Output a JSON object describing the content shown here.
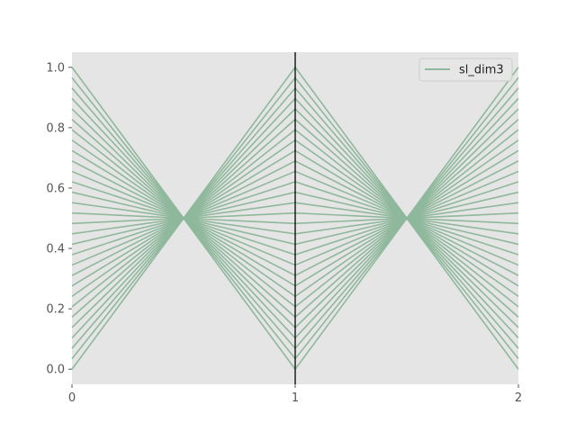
{
  "chart_data": {
    "type": "line",
    "subtype": "parallel-coordinates",
    "title": "",
    "xlabel": "",
    "ylabel": "",
    "x": [
      0,
      1,
      2
    ],
    "x_tick_labels": [
      "0",
      "1",
      "2"
    ],
    "xlim": [
      0,
      2
    ],
    "y_ticks": [
      0.0,
      0.2,
      0.4,
      0.6,
      0.8,
      1.0
    ],
    "y_tick_labels": [
      "0.0",
      "0.2",
      "0.4",
      "0.6",
      "0.8",
      "1.0"
    ],
    "ylim": [
      -0.05,
      1.05
    ],
    "grid": false,
    "background_color": "#e5e5e5",
    "vertical_axis_lines_at": [
      1
    ],
    "legend": {
      "placement": "top-right",
      "entries": [
        "sl_dim3"
      ]
    },
    "series": [
      {
        "name": "sl_dim3",
        "color": "#8fb89c",
        "description": "30 sample lines in a repeating sawtooth; each line i (t = i/29) connects y(0)=t, y(1)=1-t, y(2)=t",
        "lines": [
          [
            0.0,
            1.0,
            0.0
          ],
          [
            0.0345,
            0.9655,
            0.0345
          ],
          [
            0.069,
            0.931,
            0.069
          ],
          [
            0.1034,
            0.8966,
            0.1034
          ],
          [
            0.1379,
            0.8621,
            0.1379
          ],
          [
            0.1724,
            0.8276,
            0.1724
          ],
          [
            0.2069,
            0.7931,
            0.2069
          ],
          [
            0.2414,
            0.7586,
            0.2414
          ],
          [
            0.2759,
            0.7241,
            0.2759
          ],
          [
            0.3103,
            0.6897,
            0.3103
          ],
          [
            0.3448,
            0.6552,
            0.3448
          ],
          [
            0.3793,
            0.6207,
            0.3793
          ],
          [
            0.4138,
            0.5862,
            0.4138
          ],
          [
            0.4483,
            0.5517,
            0.4483
          ],
          [
            0.4828,
            0.5172,
            0.4828
          ],
          [
            0.5172,
            0.4828,
            0.5172
          ],
          [
            0.5517,
            0.4483,
            0.5517
          ],
          [
            0.5862,
            0.4138,
            0.5862
          ],
          [
            0.6207,
            0.3793,
            0.6207
          ],
          [
            0.6552,
            0.3448,
            0.6552
          ],
          [
            0.6897,
            0.3103,
            0.6897
          ],
          [
            0.7241,
            0.2759,
            0.7241
          ],
          [
            0.7586,
            0.2414,
            0.7586
          ],
          [
            0.7931,
            0.2069,
            0.7931
          ],
          [
            0.8276,
            0.1724,
            0.8276
          ],
          [
            0.8621,
            0.1379,
            0.8621
          ],
          [
            0.8966,
            0.1034,
            0.8966
          ],
          [
            0.931,
            0.069,
            0.931
          ],
          [
            0.9655,
            0.0345,
            0.9655
          ],
          [
            1.0,
            0.0,
            1.0
          ]
        ]
      }
    ]
  }
}
